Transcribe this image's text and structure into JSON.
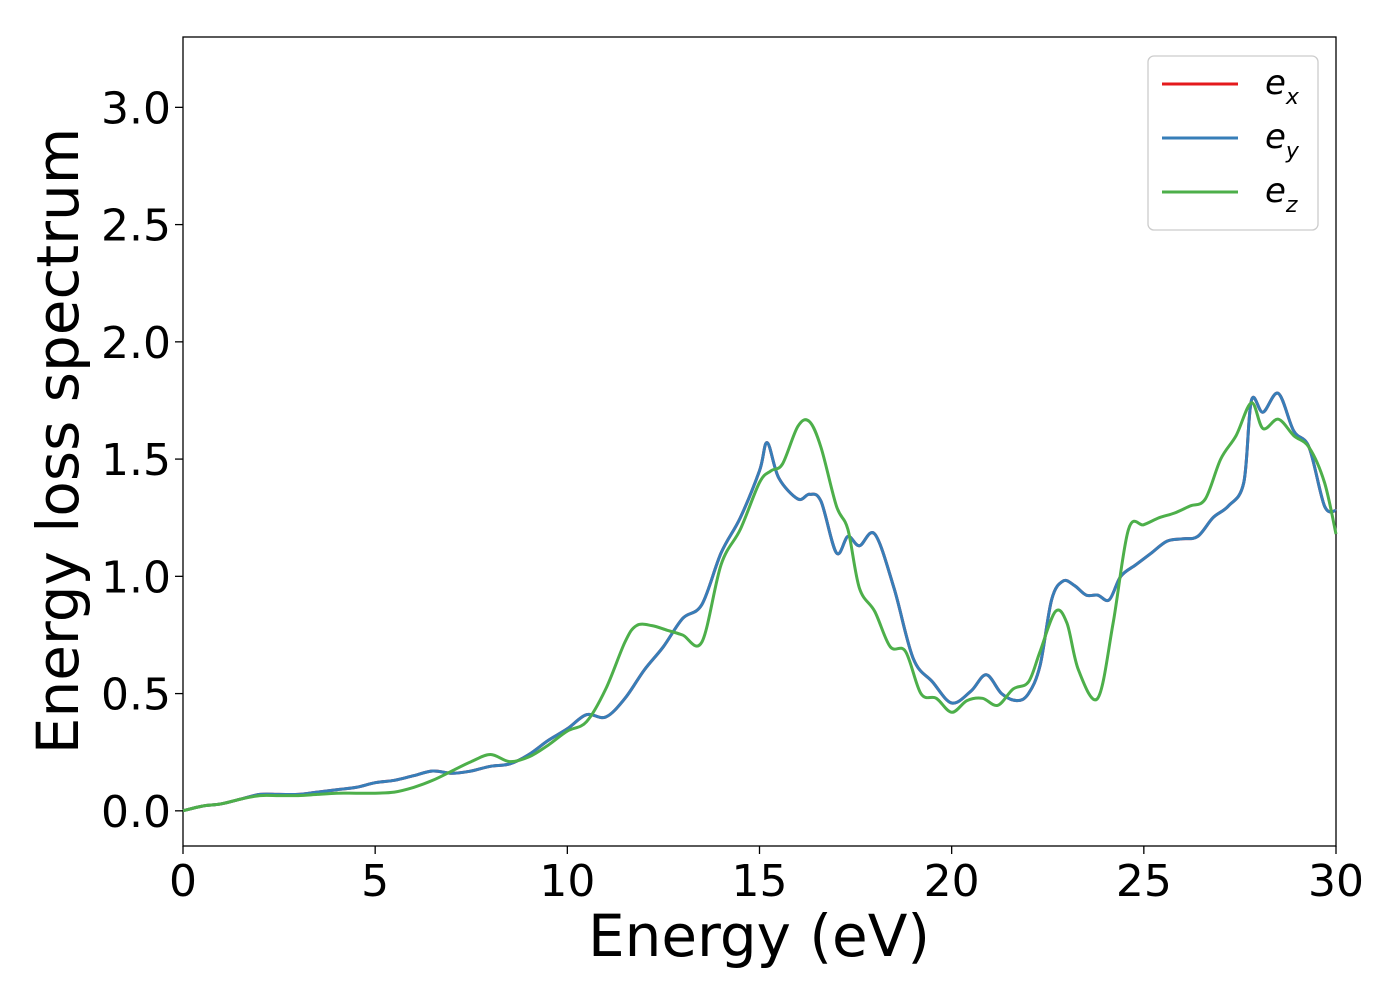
{
  "chart_data": {
    "type": "line",
    "xlabel": "Energy (eV)",
    "ylabel": "Energy loss spectrum",
    "xlim": [
      0,
      30
    ],
    "ylim": [
      -0.15,
      3.3
    ],
    "xticks": [
      0,
      5,
      10,
      15,
      20,
      25,
      30
    ],
    "yticks": [
      0.0,
      0.5,
      1.0,
      1.5,
      2.0,
      2.5,
      3.0
    ],
    "xtick_labels": [
      "0",
      "5",
      "10",
      "15",
      "20",
      "25",
      "30"
    ],
    "ytick_labels": [
      "0.0",
      "0.5",
      "1.0",
      "1.5",
      "2.0",
      "2.5",
      "3.0"
    ],
    "grid": false,
    "legend_position": "top-right",
    "series": [
      {
        "name": "e",
        "sub": "x",
        "color": "#e41a1c",
        "x": [
          0,
          0.5,
          1,
          1.5,
          2,
          2.5,
          3,
          3.5,
          4,
          4.5,
          5,
          5.5,
          6,
          6.5,
          7,
          7.5,
          8,
          8.5,
          9,
          9.5,
          10,
          10.5,
          11,
          11.5,
          12,
          12.5,
          13,
          13.5,
          14,
          14.5,
          15,
          15.2,
          15.5,
          16,
          16.3,
          16.6,
          17,
          17.3,
          17.6,
          18,
          18.5,
          19,
          19.5,
          20,
          20.5,
          20.9,
          21.3,
          21.7,
          22,
          22.3,
          22.6,
          22.9,
          23.2,
          23.5,
          23.8,
          24.1,
          24.4,
          24.8,
          25.2,
          25.6,
          26,
          26.4,
          26.8,
          27.2,
          27.6,
          27.8,
          28.1,
          28.5,
          28.9,
          29.3,
          29.7,
          30
        ],
        "y": [
          0,
          0.02,
          0.03,
          0.05,
          0.07,
          0.07,
          0.07,
          0.08,
          0.09,
          0.1,
          0.12,
          0.13,
          0.15,
          0.17,
          0.16,
          0.17,
          0.19,
          0.2,
          0.24,
          0.3,
          0.35,
          0.41,
          0.4,
          0.48,
          0.6,
          0.7,
          0.82,
          0.88,
          1.1,
          1.25,
          1.45,
          1.57,
          1.42,
          1.33,
          1.35,
          1.32,
          1.1,
          1.17,
          1.13,
          1.18,
          0.95,
          0.65,
          0.55,
          0.46,
          0.51,
          0.58,
          0.5,
          0.47,
          0.5,
          0.62,
          0.9,
          0.98,
          0.96,
          0.92,
          0.92,
          0.9,
          1.0,
          1.05,
          1.1,
          1.15,
          1.16,
          1.17,
          1.25,
          1.3,
          1.4,
          1.75,
          1.7,
          1.78,
          1.62,
          1.55,
          1.3,
          1.28
        ]
      },
      {
        "name": "e",
        "sub": "y",
        "color": "#377eb8",
        "x": [
          0,
          0.5,
          1,
          1.5,
          2,
          2.5,
          3,
          3.5,
          4,
          4.5,
          5,
          5.5,
          6,
          6.5,
          7,
          7.5,
          8,
          8.5,
          9,
          9.5,
          10,
          10.5,
          11,
          11.5,
          12,
          12.5,
          13,
          13.5,
          14,
          14.5,
          15,
          15.2,
          15.5,
          16,
          16.3,
          16.6,
          17,
          17.3,
          17.6,
          18,
          18.5,
          19,
          19.5,
          20,
          20.5,
          20.9,
          21.3,
          21.7,
          22,
          22.3,
          22.6,
          22.9,
          23.2,
          23.5,
          23.8,
          24.1,
          24.4,
          24.8,
          25.2,
          25.6,
          26,
          26.4,
          26.8,
          27.2,
          27.6,
          27.8,
          28.1,
          28.5,
          28.9,
          29.3,
          29.7,
          30
        ],
        "y": [
          0,
          0.02,
          0.03,
          0.05,
          0.07,
          0.07,
          0.07,
          0.08,
          0.09,
          0.1,
          0.12,
          0.13,
          0.15,
          0.17,
          0.16,
          0.17,
          0.19,
          0.2,
          0.24,
          0.3,
          0.35,
          0.41,
          0.4,
          0.48,
          0.6,
          0.7,
          0.82,
          0.88,
          1.1,
          1.25,
          1.45,
          1.57,
          1.42,
          1.33,
          1.35,
          1.32,
          1.1,
          1.17,
          1.13,
          1.18,
          0.95,
          0.65,
          0.55,
          0.46,
          0.51,
          0.58,
          0.5,
          0.47,
          0.5,
          0.62,
          0.9,
          0.98,
          0.96,
          0.92,
          0.92,
          0.9,
          1.0,
          1.05,
          1.1,
          1.15,
          1.16,
          1.17,
          1.25,
          1.3,
          1.4,
          1.75,
          1.7,
          1.78,
          1.62,
          1.55,
          1.3,
          1.28
        ]
      },
      {
        "name": "e",
        "sub": "z",
        "color": "#4daf4a",
        "x": [
          0,
          0.5,
          1,
          1.5,
          2,
          2.5,
          3,
          3.5,
          4,
          4.5,
          5,
          5.5,
          6,
          6.5,
          7,
          7.5,
          8,
          8.5,
          9,
          9.5,
          10,
          10.5,
          11,
          11.5,
          11.8,
          12.2,
          12.6,
          13,
          13.5,
          14,
          14.5,
          15,
          15.3,
          15.6,
          16,
          16.3,
          16.6,
          17,
          17.3,
          17.6,
          18,
          18.4,
          18.8,
          19.2,
          19.6,
          20,
          20.4,
          20.8,
          21.2,
          21.6,
          22,
          22.3,
          22.7,
          23.0,
          23.3,
          23.8,
          24.2,
          24.6,
          25.0,
          25.4,
          25.8,
          26.2,
          26.6,
          27.0,
          27.4,
          27.8,
          28.1,
          28.5,
          28.9,
          29.3,
          29.7,
          30
        ],
        "y": [
          0,
          0.02,
          0.03,
          0.05,
          0.065,
          0.065,
          0.065,
          0.07,
          0.075,
          0.075,
          0.075,
          0.08,
          0.1,
          0.13,
          0.17,
          0.21,
          0.24,
          0.21,
          0.23,
          0.28,
          0.34,
          0.38,
          0.52,
          0.72,
          0.79,
          0.79,
          0.77,
          0.75,
          0.72,
          1.05,
          1.2,
          1.4,
          1.45,
          1.48,
          1.64,
          1.66,
          1.55,
          1.3,
          1.2,
          0.95,
          0.85,
          0.7,
          0.68,
          0.5,
          0.48,
          0.42,
          0.47,
          0.48,
          0.45,
          0.52,
          0.55,
          0.68,
          0.85,
          0.8,
          0.6,
          0.48,
          0.8,
          1.2,
          1.22,
          1.25,
          1.27,
          1.3,
          1.33,
          1.5,
          1.6,
          1.74,
          1.63,
          1.67,
          1.6,
          1.55,
          1.4,
          1.18
        ]
      }
    ]
  }
}
